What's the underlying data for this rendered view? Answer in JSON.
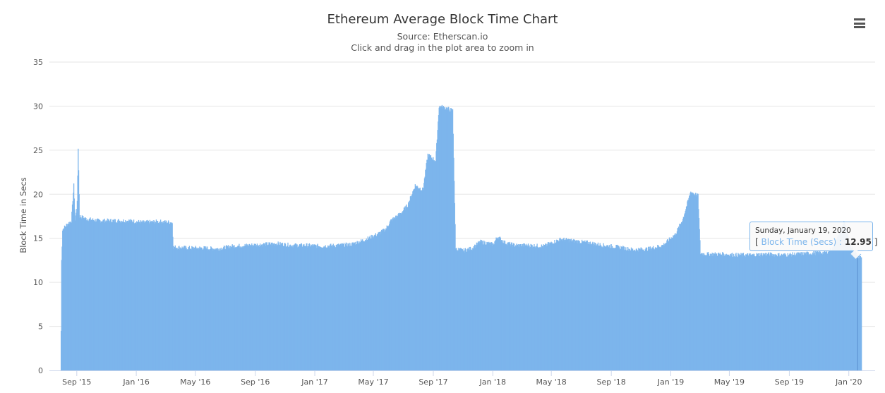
{
  "chart_data": {
    "type": "bar",
    "title": "Ethereum Average Block Time Chart",
    "subtitle": "Source: Etherscan.io",
    "zoom_hint": "Click and drag in the plot area to zoom in",
    "ylabel": "Block Time in Secs",
    "xlabel": "",
    "ylim": [
      0,
      35
    ],
    "yticks": [
      "0",
      "5",
      "10",
      "15",
      "20",
      "25",
      "30",
      "35"
    ],
    "grid": true,
    "legend": "none",
    "x_start": "2015-07-30",
    "x_end": "2020-01-26",
    "xticks": [
      {
        "label": "Sep '15",
        "date": "2015-09-01"
      },
      {
        "label": "Jan '16",
        "date": "2016-01-01"
      },
      {
        "label": "May '16",
        "date": "2016-05-01"
      },
      {
        "label": "Sep '16",
        "date": "2016-09-01"
      },
      {
        "label": "Jan '17",
        "date": "2017-01-01"
      },
      {
        "label": "May '17",
        "date": "2017-05-01"
      },
      {
        "label": "Sep '17",
        "date": "2017-09-01"
      },
      {
        "label": "Jan '18",
        "date": "2018-01-01"
      },
      {
        "label": "May '18",
        "date": "2018-05-01"
      },
      {
        "label": "Sep '18",
        "date": "2018-09-01"
      },
      {
        "label": "Jan '19",
        "date": "2019-01-01"
      },
      {
        "label": "May '19",
        "date": "2019-05-01"
      },
      {
        "label": "Sep '19",
        "date": "2019-09-01"
      },
      {
        "label": "Jan '20",
        "date": "2020-01-01"
      }
    ],
    "series": [
      {
        "name": "Block Time (Secs)",
        "color": "#7cb5ec",
        "points": [
          [
            "2015-07-30",
            4.5
          ],
          [
            "2015-07-31",
            12.5
          ],
          [
            "2015-08-02",
            16.0
          ],
          [
            "2015-08-10",
            16.5
          ],
          [
            "2015-08-20",
            17.0
          ],
          [
            "2015-08-25",
            21.0
          ],
          [
            "2015-08-28",
            17.0
          ],
          [
            "2015-09-01",
            19.0
          ],
          [
            "2015-09-03",
            25.3
          ],
          [
            "2015-09-06",
            17.5
          ],
          [
            "2015-09-20",
            17.2
          ],
          [
            "2015-10-15",
            17.0
          ],
          [
            "2015-11-15",
            17.0
          ],
          [
            "2015-12-15",
            17.0
          ],
          [
            "2016-01-15",
            16.8
          ],
          [
            "2016-02-15",
            16.9
          ],
          [
            "2016-03-14",
            16.8
          ],
          [
            "2016-03-16",
            14.0
          ],
          [
            "2016-04-15",
            13.9
          ],
          [
            "2016-05-15",
            13.9
          ],
          [
            "2016-06-15",
            13.8
          ],
          [
            "2016-07-15",
            14.1
          ],
          [
            "2016-08-15",
            14.2
          ],
          [
            "2016-09-15",
            14.3
          ],
          [
            "2016-10-15",
            14.4
          ],
          [
            "2016-11-15",
            14.2
          ],
          [
            "2016-12-15",
            14.2
          ],
          [
            "2017-01-15",
            14.1
          ],
          [
            "2017-02-15",
            14.2
          ],
          [
            "2017-03-15",
            14.3
          ],
          [
            "2017-04-01",
            14.6
          ],
          [
            "2017-04-20",
            15.0
          ],
          [
            "2017-05-10",
            15.5
          ],
          [
            "2017-05-25",
            16.0
          ],
          [
            "2017-06-05",
            17.0
          ],
          [
            "2017-06-25",
            17.8
          ],
          [
            "2017-07-10",
            18.8
          ],
          [
            "2017-07-25",
            21.0
          ],
          [
            "2017-08-10",
            20.5
          ],
          [
            "2017-08-20",
            24.5
          ],
          [
            "2017-09-05",
            23.8
          ],
          [
            "2017-09-12",
            30.0
          ],
          [
            "2017-09-25",
            29.8
          ],
          [
            "2017-10-10",
            29.5
          ],
          [
            "2017-10-16",
            13.8
          ],
          [
            "2017-11-01",
            13.6
          ],
          [
            "2017-11-20",
            13.9
          ],
          [
            "2017-12-05",
            14.6
          ],
          [
            "2017-12-15",
            14.5
          ],
          [
            "2018-01-01",
            14.3
          ],
          [
            "2018-01-10",
            15.2
          ],
          [
            "2018-01-25",
            14.5
          ],
          [
            "2018-02-15",
            14.2
          ],
          [
            "2018-03-15",
            14.2
          ],
          [
            "2018-04-15",
            14.1
          ],
          [
            "2018-05-01",
            14.5
          ],
          [
            "2018-05-20",
            14.9
          ],
          [
            "2018-06-15",
            14.7
          ],
          [
            "2018-07-15",
            14.5
          ],
          [
            "2018-08-15",
            14.2
          ],
          [
            "2018-09-15",
            14.0
          ],
          [
            "2018-10-15",
            13.7
          ],
          [
            "2018-11-15",
            13.8
          ],
          [
            "2018-12-15",
            14.2
          ],
          [
            "2019-01-10",
            15.5
          ],
          [
            "2019-01-25",
            17.2
          ],
          [
            "2019-02-10",
            20.3
          ],
          [
            "2019-02-25",
            19.8
          ],
          [
            "2019-03-02",
            13.3
          ],
          [
            "2019-03-15",
            13.2
          ],
          [
            "2019-04-15",
            13.2
          ],
          [
            "2019-05-15",
            13.1
          ],
          [
            "2019-06-15",
            13.1
          ],
          [
            "2019-07-15",
            13.2
          ],
          [
            "2019-08-15",
            13.1
          ],
          [
            "2019-09-15",
            13.2
          ],
          [
            "2019-10-15",
            13.3
          ],
          [
            "2019-11-15",
            13.4
          ],
          [
            "2019-12-01",
            14.0
          ],
          [
            "2019-12-15",
            16.0
          ],
          [
            "2019-12-22",
            17.0
          ],
          [
            "2020-01-01",
            14.5
          ],
          [
            "2020-01-08",
            13.8
          ],
          [
            "2020-01-19",
            12.95
          ],
          [
            "2020-01-26",
            12.9
          ]
        ]
      }
    ],
    "tooltip": {
      "date": "Sunday, January 19, 2020",
      "open": "[",
      "series_label": "Block Time (Secs)",
      "separator": ":",
      "value": "12.95",
      "close": "]"
    }
  },
  "icons": {
    "menu": "hamburger-menu-icon"
  }
}
